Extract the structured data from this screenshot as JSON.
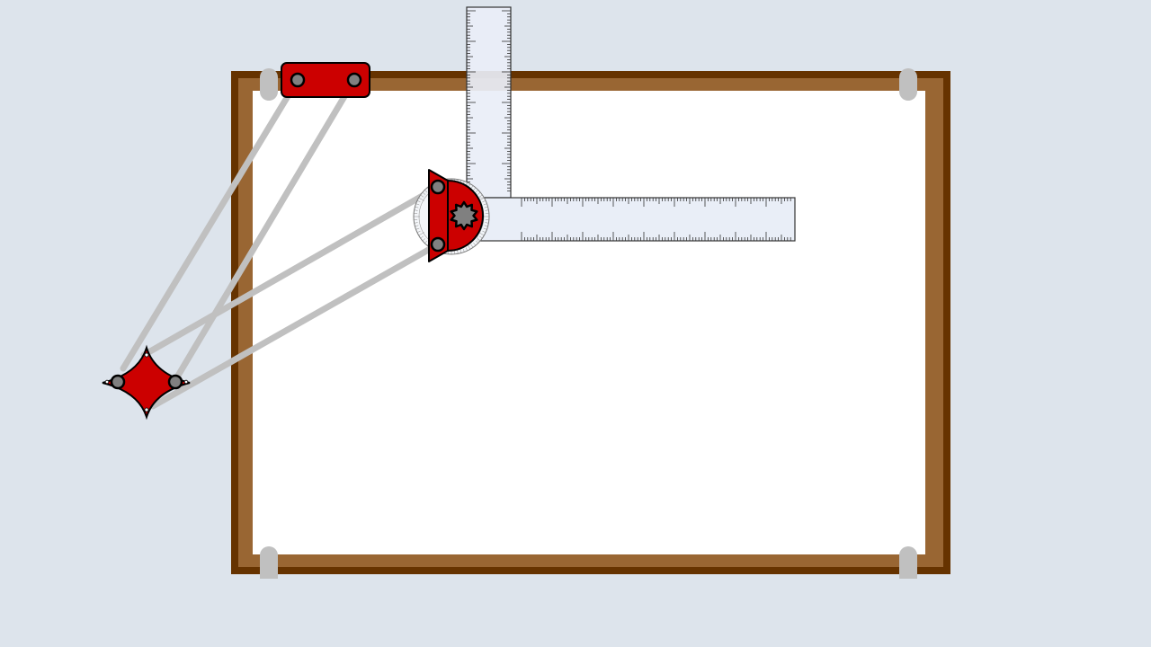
{
  "scene": {
    "name": "drafting-machine",
    "colors": {
      "background": "#dde4ec",
      "frame_outer": "#663300",
      "frame_inner": "#996633",
      "paper": "#ffffff",
      "clip": "#c0c0c0",
      "arm": "#c0c0c0",
      "machine_red": "#cc0000",
      "outline": "#000000",
      "joint": "#808080",
      "ruler_fill": "#e9eef7",
      "ruler_stroke": "#333333",
      "protractor_fill": "#f2f4f8",
      "knob": "#808080"
    },
    "icons": {
      "anchor_clamp": "anchor-clamp-icon",
      "elbow_joint": "elbow-joint-icon",
      "protractor_head": "protractor-head-icon",
      "knob": "locking-knob-icon"
    }
  }
}
